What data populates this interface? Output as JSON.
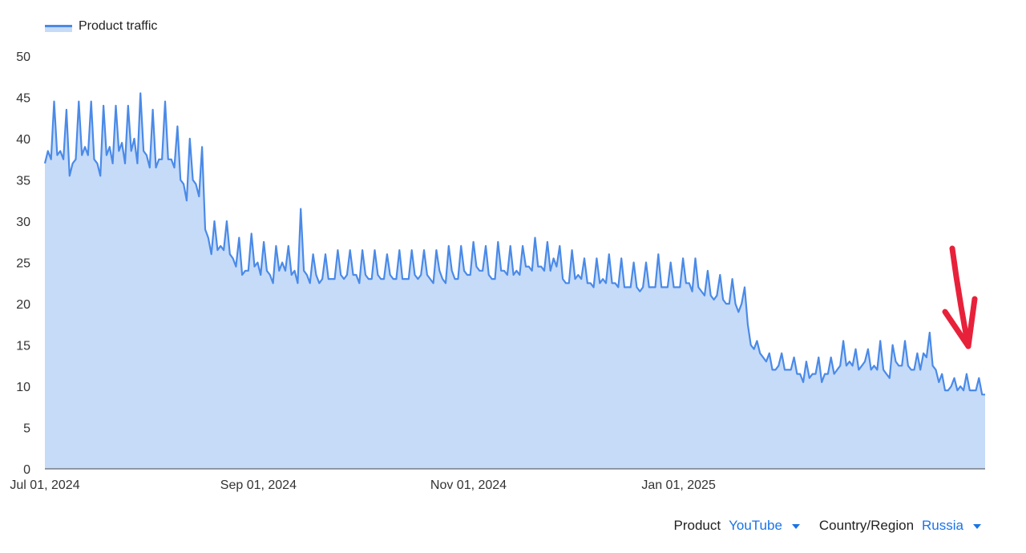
{
  "chart_data": {
    "type": "area",
    "series": [
      {
        "name": "Product traffic",
        "color": "#4a8ae8",
        "fill": "#c6dbf8",
        "values": [
          37,
          38.5,
          37.5,
          44.5,
          38,
          38.5,
          37.5,
          43.5,
          35.5,
          37,
          37.5,
          44.5,
          38,
          39,
          38,
          44.5,
          37.5,
          37,
          35.5,
          44,
          38,
          39,
          37,
          44,
          38.5,
          39.5,
          37,
          44,
          38.5,
          40,
          37,
          45.5,
          38.5,
          38,
          36.5,
          43.5,
          36.5,
          37.5,
          37.5,
          44.5,
          37.5,
          37.5,
          36.5,
          41.5,
          35,
          34.5,
          32.5,
          40,
          35,
          34.5,
          33,
          39,
          29,
          28,
          26,
          30,
          26.5,
          27,
          26.5,
          30,
          26,
          25.5,
          24.5,
          28,
          23.5,
          24,
          24,
          28.5,
          24.5,
          25,
          23.5,
          27.5,
          24,
          23.5,
          22.5,
          27,
          24,
          25,
          24,
          27,
          23.5,
          24,
          22.5,
          31.5,
          24,
          23.5,
          22.5,
          26,
          23.5,
          22.5,
          23,
          26,
          23,
          23,
          23,
          26.5,
          23.5,
          23,
          23.5,
          26.5,
          23.5,
          23.5,
          22.5,
          26.5,
          23.5,
          23,
          23,
          26.5,
          23.5,
          23,
          23,
          26,
          23.5,
          23,
          23,
          26.5,
          23,
          23,
          23,
          26.5,
          23.5,
          23,
          23.5,
          26.5,
          23.5,
          23,
          22.5,
          26.5,
          24,
          23,
          22.5,
          27,
          24,
          23,
          23,
          27,
          24,
          23.5,
          23.5,
          27.5,
          24.5,
          24,
          24,
          27,
          23.5,
          23,
          23,
          27.5,
          24,
          24,
          23.5,
          27,
          23.5,
          24,
          23.5,
          27,
          24.5,
          24.5,
          24,
          28,
          24.5,
          24.5,
          24,
          27.5,
          24,
          25.5,
          24.5,
          27,
          23,
          22.5,
          22.5,
          26.5,
          23,
          23.5,
          23,
          25.5,
          22.5,
          22.5,
          22,
          25.5,
          22.5,
          23,
          22.5,
          26,
          22.5,
          22.5,
          22,
          25.5,
          22,
          22,
          22,
          25,
          22,
          21.5,
          22,
          25,
          22,
          22,
          22,
          26,
          22,
          22,
          22,
          25,
          22,
          22,
          22,
          25.5,
          22.5,
          22.5,
          21.5,
          25.5,
          22,
          21.5,
          21,
          24,
          21,
          20.5,
          21,
          23.5,
          20.5,
          20,
          20,
          23,
          20,
          19,
          20,
          22,
          17.5,
          15,
          14.5,
          15.5,
          14,
          13.5,
          13,
          14,
          12,
          12,
          12.5,
          14,
          12,
          12,
          12,
          13.5,
          11.5,
          11.5,
          10.5,
          13,
          11,
          11.5,
          11.5,
          13.5,
          10.5,
          11.5,
          11.5,
          13.5,
          11.5,
          12,
          12.5,
          15.5,
          12.5,
          13,
          12.5,
          14.5,
          12,
          12.5,
          13,
          14.5,
          12,
          12.5,
          12,
          15.5,
          12,
          11.5,
          11,
          15,
          13,
          12.5,
          12.5,
          15.5,
          12.5,
          12,
          12,
          14,
          12,
          14,
          13.5,
          16.5,
          12.5,
          12,
          10.5,
          11.5,
          9.5,
          9.5,
          10,
          11,
          9.5,
          10,
          9.5,
          11.5,
          9.5,
          9.5,
          9.5,
          11,
          9,
          9
        ]
      }
    ],
    "x_start": "2024-07-01",
    "x_end": "2025-03-31",
    "x_ticks": [
      "Jul 01, 2024",
      "Sep 01, 2024",
      "Nov 01, 2024",
      "Jan 01, 2025"
    ],
    "x_tick_dates": [
      "2024-07-01",
      "2024-09-01",
      "2024-11-01",
      "2025-01-01"
    ],
    "y_ticks": [
      0,
      5,
      10,
      15,
      20,
      25,
      30,
      35,
      40,
      45,
      50
    ],
    "ylim": [
      0,
      50
    ],
    "grid": false,
    "legend": "top-left",
    "title": "",
    "xlabel": "",
    "ylabel": ""
  },
  "annotation": {
    "type": "arrow",
    "color": "#e8213a"
  },
  "legend": {
    "label": "Product traffic"
  },
  "filters": {
    "product_label": "Product",
    "product_value": "YouTube",
    "region_label": "Country/Region",
    "region_value": "Russia"
  }
}
